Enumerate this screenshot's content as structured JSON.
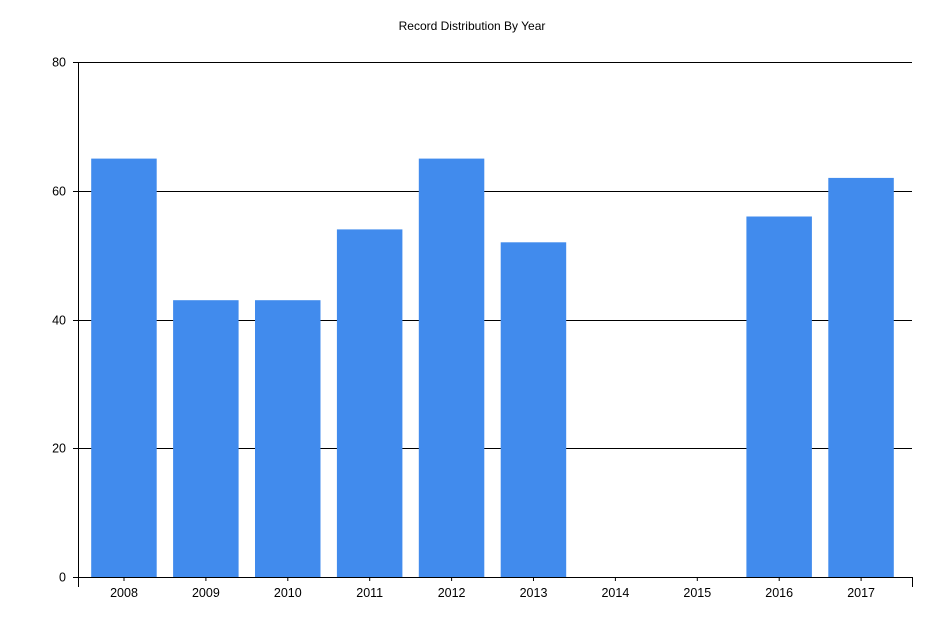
{
  "chart_data": {
    "type": "bar",
    "title": "Record Distribution By Year",
    "xlabel": "",
    "ylabel": "",
    "categories": [
      "2008",
      "2009",
      "2010",
      "2011",
      "2012",
      "2013",
      "2014",
      "2015",
      "2016",
      "2017"
    ],
    "values": [
      65,
      43,
      43,
      54,
      65,
      52,
      0,
      0,
      56,
      62
    ],
    "ylim": [
      0,
      80
    ],
    "yticks": [
      0,
      20,
      40,
      60,
      80
    ],
    "grid": true,
    "colors": {
      "bar": "#418BED",
      "grid": "#000000",
      "axis": "#000000",
      "background": "#FFFFFF"
    }
  }
}
